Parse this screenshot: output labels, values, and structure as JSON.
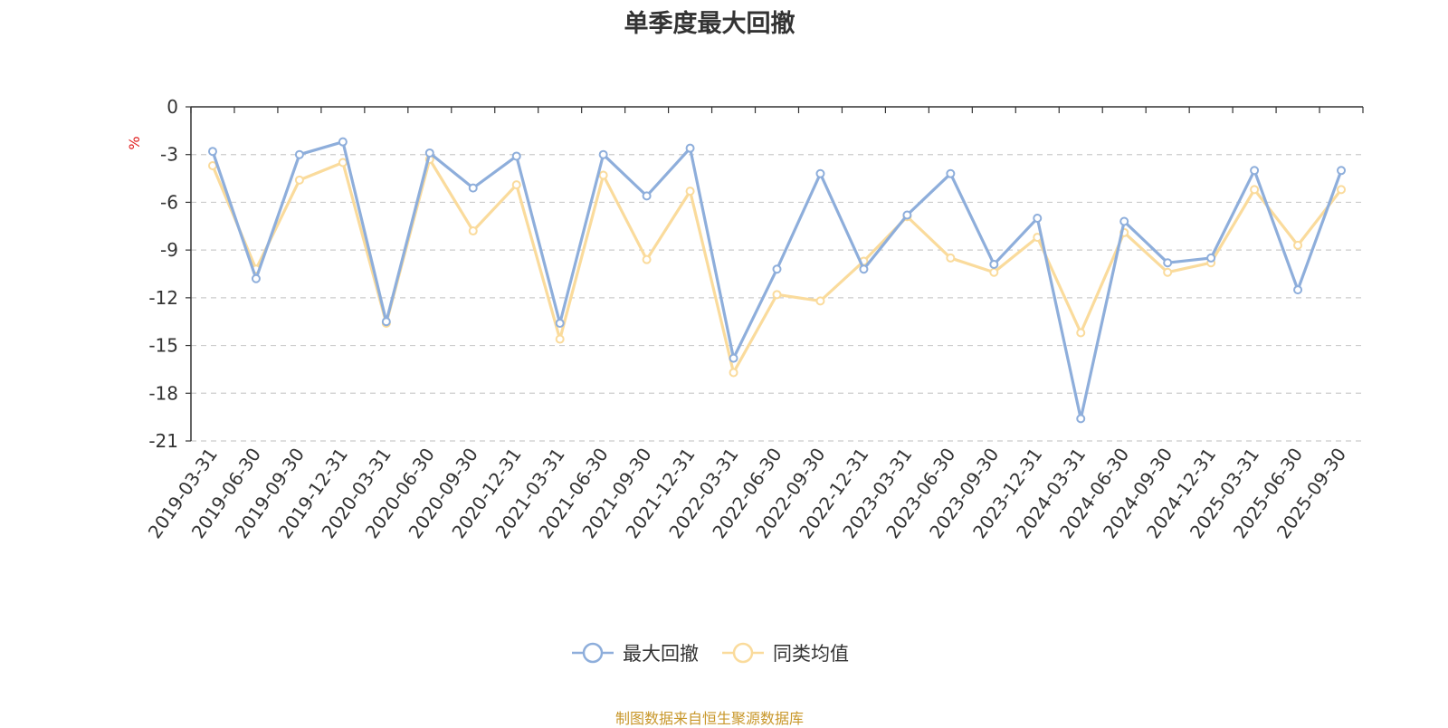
{
  "chart_data": {
    "type": "line",
    "title": "单季度最大回撤",
    "ylabel": "%",
    "ylim": [
      -21,
      0
    ],
    "yticks": [
      0,
      -3,
      -6,
      -9,
      -12,
      -15,
      -18,
      -21
    ],
    "grid": true,
    "legend_position": "bottom",
    "categories": [
      "2019-03-31",
      "2019-06-30",
      "2019-09-30",
      "2019-12-31",
      "2020-03-31",
      "2020-06-30",
      "2020-09-30",
      "2020-12-31",
      "2021-03-31",
      "2021-06-30",
      "2021-09-30",
      "2021-12-31",
      "2022-03-31",
      "2022-06-30",
      "2022-09-30",
      "2022-12-31",
      "2023-03-31",
      "2023-06-30",
      "2023-09-30",
      "2023-12-31",
      "2024-03-31",
      "2024-06-30",
      "2024-09-30",
      "2024-12-31",
      "2025-03-31",
      "2025-06-30",
      "2025-09-30"
    ],
    "series": [
      {
        "name": "最大回撤",
        "color": "#8eaedb",
        "values": [
          -2.8,
          -10.8,
          -3.0,
          -2.2,
          -13.5,
          -2.9,
          -5.1,
          -3.1,
          -13.6,
          -3.0,
          -5.6,
          -2.6,
          -15.8,
          -10.2,
          -4.2,
          -10.2,
          -6.8,
          -4.2,
          -9.9,
          -7.0,
          -19.6,
          -7.2,
          -9.8,
          -9.5,
          -4.0,
          -11.5,
          -4.0
        ]
      },
      {
        "name": "同类均值",
        "color": "#fadb9c",
        "values": [
          -3.7,
          -10.2,
          -4.6,
          -3.5,
          -13.6,
          -3.3,
          -7.8,
          -4.9,
          -14.6,
          -4.3,
          -9.6,
          -5.3,
          -16.7,
          -11.8,
          -12.2,
          -9.7,
          -6.9,
          -9.5,
          -10.4,
          -8.2,
          -14.2,
          -7.9,
          -10.4,
          -9.8,
          -5.2,
          -8.7,
          -5.2
        ]
      }
    ]
  },
  "source_note": "制图数据来自恒生聚源数据库"
}
